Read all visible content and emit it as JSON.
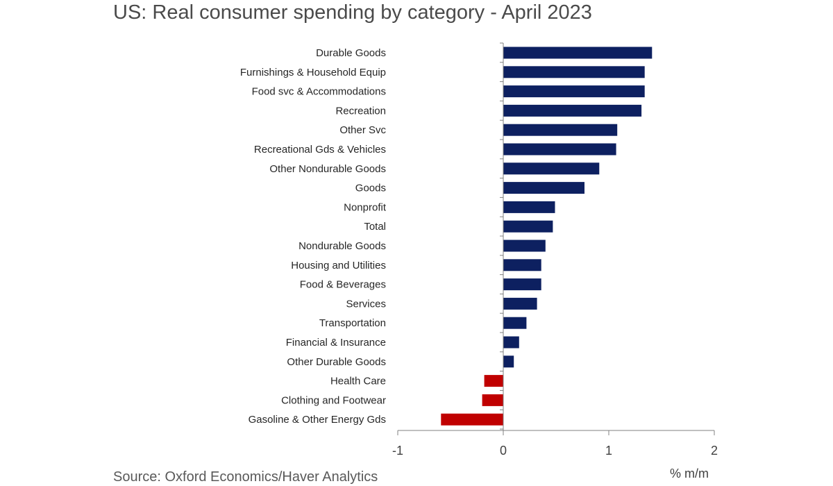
{
  "chart_data": {
    "type": "bar",
    "orientation": "horizontal",
    "title": "US: Real consumer spending by category - April 2023",
    "source": "Source: Oxford Economics/Haver Analytics",
    "unit_label": "% m/m",
    "categories": [
      "Durable Goods",
      "Furnishings & Household Equip",
      "Food svc & Accommodations",
      "Recreation",
      "Other Svc",
      "Recreational Gds & Vehicles",
      "Other Nondurable Goods",
      "Goods",
      "Nonprofit",
      "Total",
      "Nondurable Goods",
      "Housing and Utilities",
      "Food & Beverages",
      "Services",
      "Transportation",
      "Financial & Insurance",
      "Other Durable Goods",
      "Health Care",
      "Clothing and Footwear",
      "Gasoline & Other Energy Gds"
    ],
    "values": [
      1.41,
      1.34,
      1.34,
      1.31,
      1.08,
      1.07,
      0.91,
      0.77,
      0.49,
      0.47,
      0.4,
      0.36,
      0.36,
      0.32,
      0.22,
      0.15,
      0.1,
      -0.18,
      -0.2,
      -0.59
    ],
    "xlim": [
      -1,
      2
    ],
    "xticks": [
      "-1",
      "0",
      "1",
      "2"
    ],
    "grid": false,
    "colors": {
      "positive": "#0d2060",
      "negative": "#c00000",
      "axis": "#808080"
    }
  }
}
